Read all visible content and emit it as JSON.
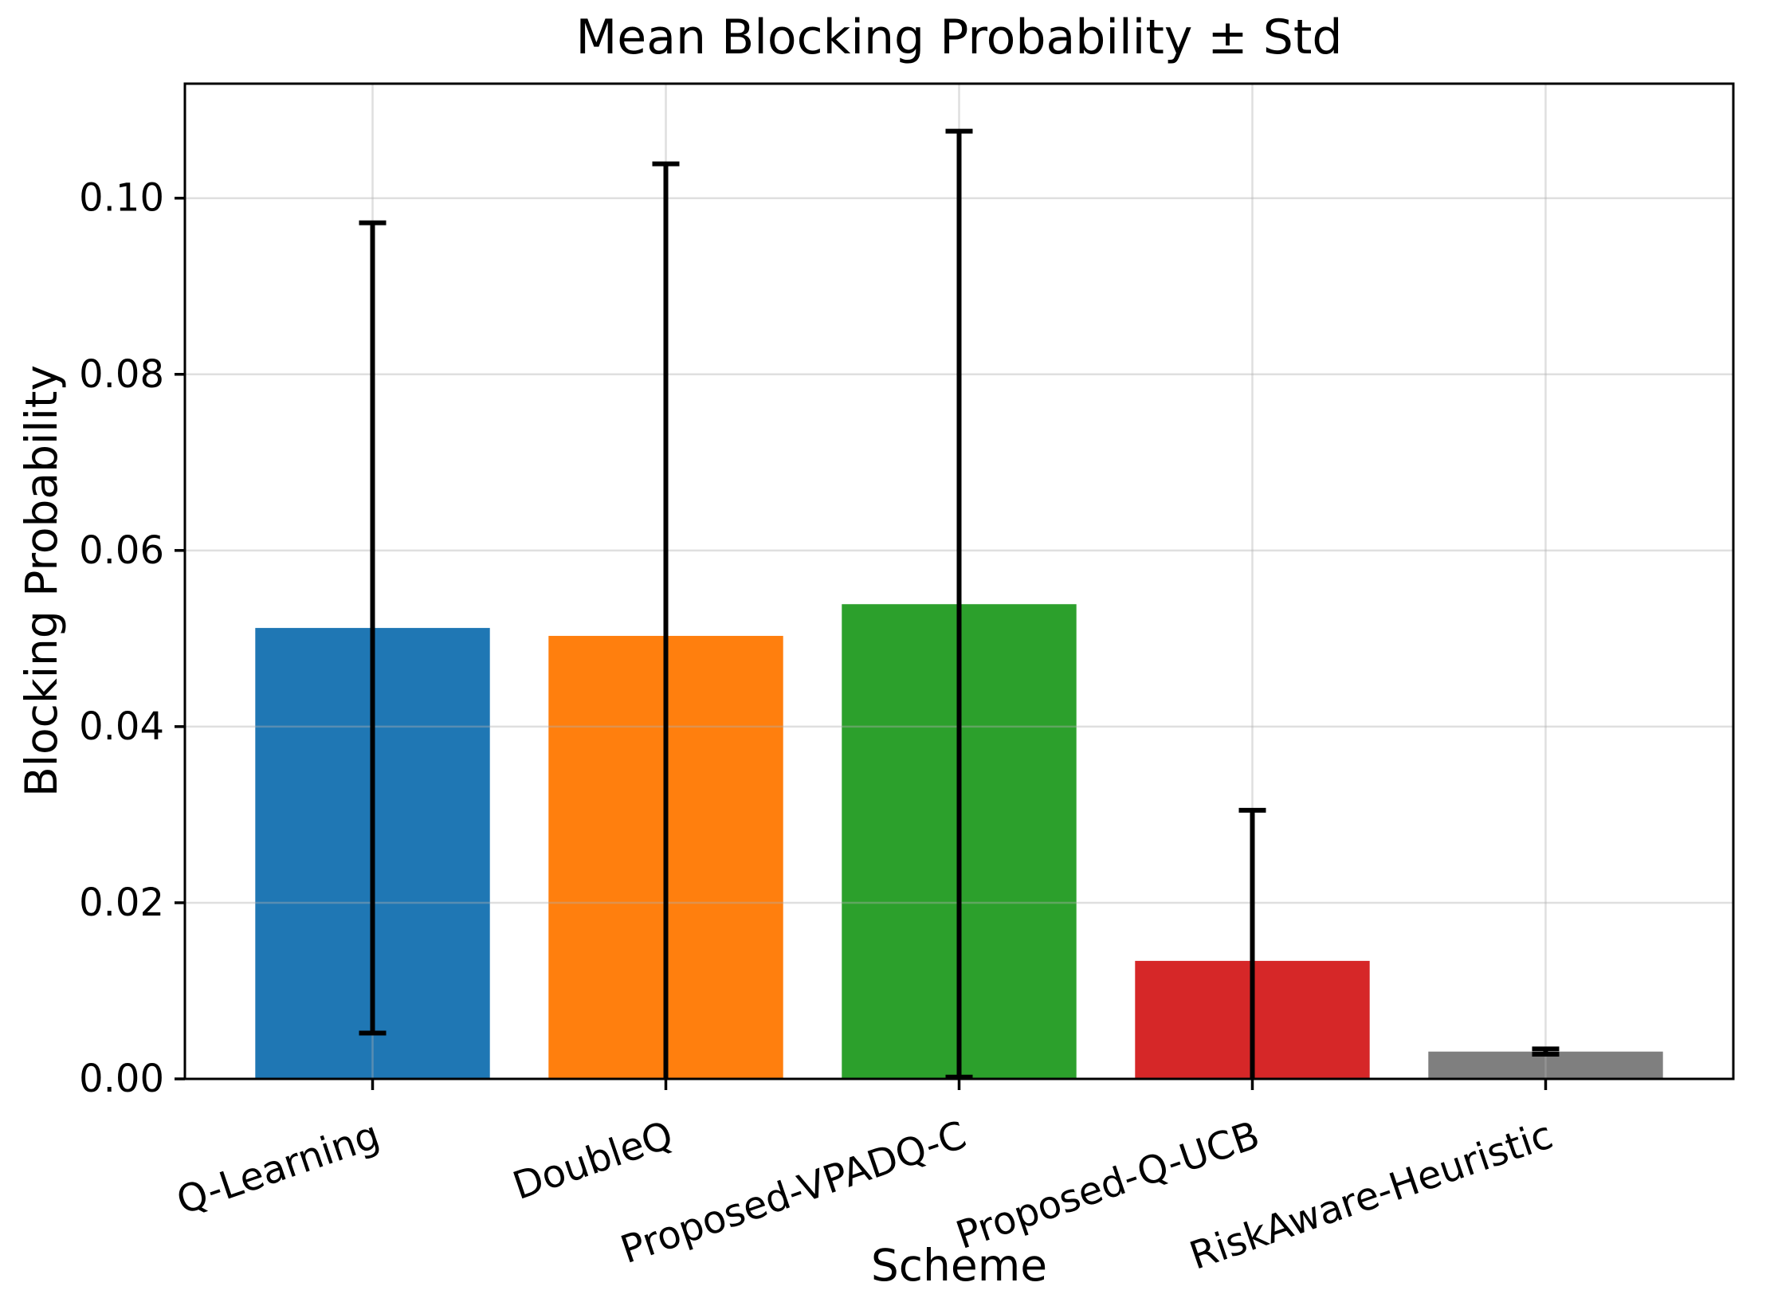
{
  "chart_data": {
    "type": "bar",
    "title": "Mean Blocking Probability ± Std",
    "xlabel": "Scheme",
    "ylabel": "Blocking Probability",
    "categories": [
      "Q-Learning",
      "DoubleQ",
      "Proposed-VPADQ-C",
      "Proposed-Q-UCB",
      "RiskAware-Heuristic"
    ],
    "series": [
      {
        "name": "mean_blocking_probability",
        "values": [
          0.0512,
          0.0503,
          0.0539,
          0.0134,
          0.0031
        ]
      },
      {
        "name": "std",
        "values": [
          0.046,
          0.0536,
          0.0537,
          0.0171,
          0.0003
        ]
      }
    ],
    "bar_colors": [
      "#1f77b4",
      "#ff7f0e",
      "#2ca02c",
      "#d62728",
      "#7f7f7f"
    ],
    "errorbar_color": "#000000",
    "axis_color": "#000000",
    "grid": true,
    "grid_color_rgba": "rgba(176,176,176,0.4)",
    "ylim": [
      0,
      0.113
    ],
    "ytick_values": [
      0.0,
      0.02,
      0.04,
      0.06,
      0.08,
      0.1
    ],
    "ytick_labels": [
      "0.00",
      "0.02",
      "0.04",
      "0.06",
      "0.08",
      "0.10"
    ],
    "bar_width_fraction": 0.8,
    "x_margin_fraction": 0.05,
    "xtick_label_rotation_deg": 19,
    "legend": "none"
  }
}
